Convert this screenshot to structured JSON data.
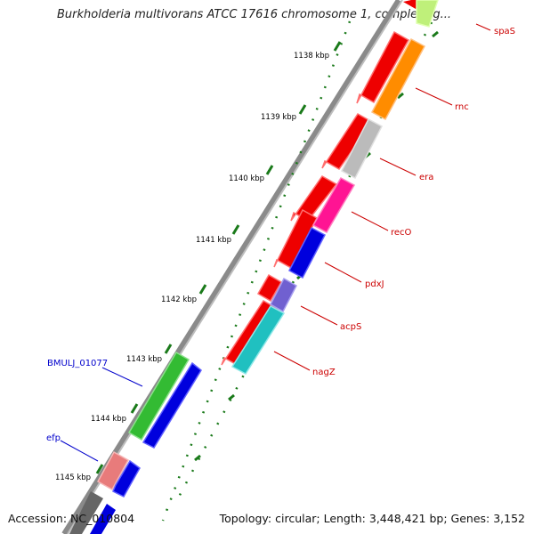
{
  "title": "Burkholderia multivorans ATCC 17616 chromosome 1, complete g...",
  "footer": {
    "accession": "Accession: NC_010804",
    "topology": "Topology: circular; Length: 3,448,421 bp; Genes: 3,152"
  },
  "ruler": {
    "ticks": [
      "1138 kbp",
      "1139 kbp",
      "1140 kbp",
      "1141 kbp",
      "1142 kbp",
      "1143 kbp",
      "1144 kbp",
      "1145 kbp"
    ]
  },
  "colors": {
    "backbone": "#888888",
    "tick_marks": "#1a7a1a",
    "gene_label_red": "#cc0000",
    "gene_label_blue": "#0000cc"
  },
  "genes": [
    {
      "name": "spaS",
      "label_color": "#cc0000"
    },
    {
      "name": "rnc",
      "label_color": "#cc0000"
    },
    {
      "name": "era",
      "label_color": "#cc0000"
    },
    {
      "name": "recO",
      "label_color": "#cc0000"
    },
    {
      "name": "pdxJ",
      "label_color": "#cc0000"
    },
    {
      "name": "acpS",
      "label_color": "#cc0000"
    },
    {
      "name": "nagZ",
      "label_color": "#cc0000"
    },
    {
      "name": "BMULJ_01077",
      "label_color": "#0000cc"
    },
    {
      "name": "efp",
      "label_color": "#0000cc"
    }
  ]
}
